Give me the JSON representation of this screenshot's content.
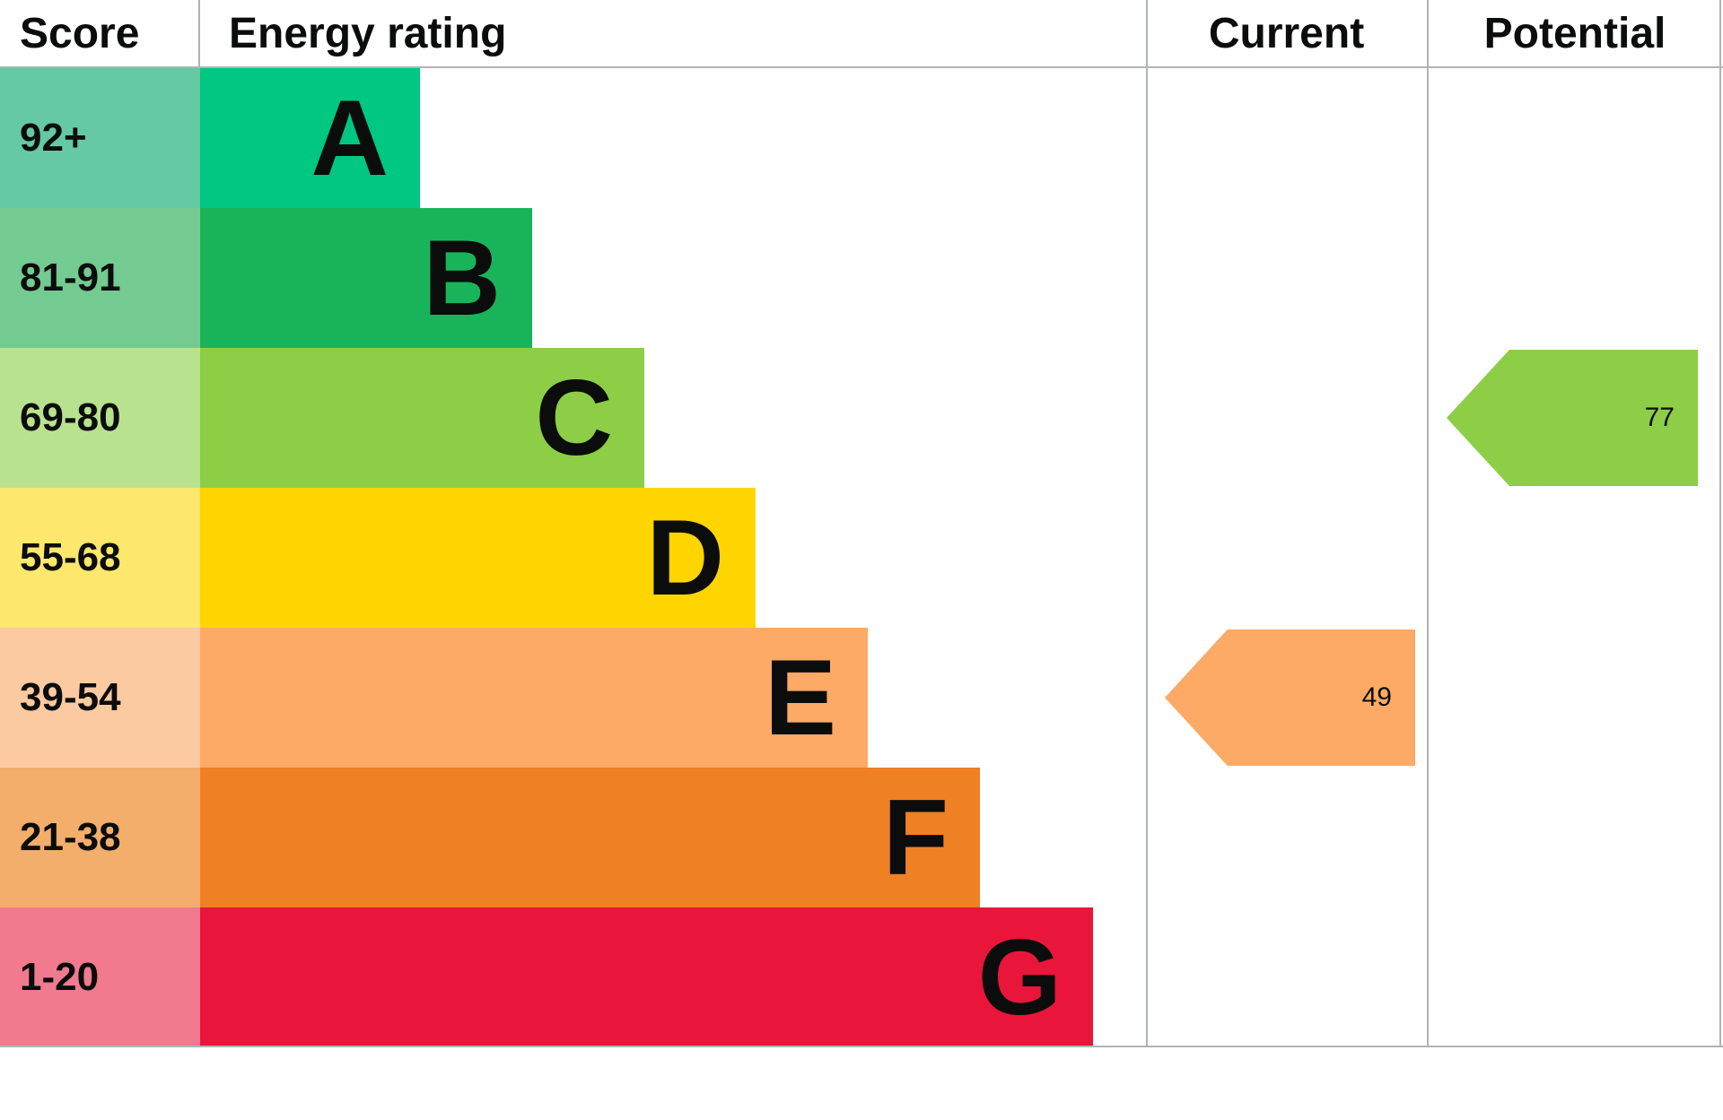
{
  "header": {
    "score": "Score",
    "energy_rating": "Energy rating",
    "current": "Current",
    "potential": "Potential"
  },
  "bands": [
    {
      "letter": "A",
      "score": "92+",
      "color": "#00c781",
      "tint": "#65c9a4"
    },
    {
      "letter": "B",
      "score": "81-91",
      "color": "#19b459",
      "tint": "#74cb92"
    },
    {
      "letter": "C",
      "score": "69-80",
      "color": "#8dce46",
      "tint": "#b9e28e"
    },
    {
      "letter": "D",
      "score": "55-68",
      "color": "#ffd500",
      "tint": "#fde76c"
    },
    {
      "letter": "E",
      "score": "39-54",
      "color": "#fcaa65",
      "tint": "#fccaa0"
    },
    {
      "letter": "F",
      "score": "21-38",
      "color": "#ef8023",
      "tint": "#f3ae6c"
    },
    {
      "letter": "G",
      "score": "1-20",
      "color": "#e9153b",
      "tint": "#f17a8e"
    }
  ],
  "current": {
    "value": "49",
    "color": "#fcaa65"
  },
  "potential": {
    "value": "77",
    "color": "#8dce46"
  },
  "border_color": "#b1b4b6",
  "chart_data": {
    "type": "bar",
    "title": "Energy rating",
    "categories": [
      "A",
      "B",
      "C",
      "D",
      "E",
      "F",
      "G"
    ],
    "score_ranges": [
      "92+",
      "81-91",
      "69-80",
      "55-68",
      "39-54",
      "21-38",
      "1-20"
    ],
    "band_colors": [
      "#00c781",
      "#19b459",
      "#8dce46",
      "#ffd500",
      "#fcaa65",
      "#ef8023",
      "#e9153b"
    ],
    "current_score": 49,
    "current_band": "E",
    "potential_score": 77,
    "potential_band": "C",
    "legend_position": "none",
    "grid": false
  }
}
